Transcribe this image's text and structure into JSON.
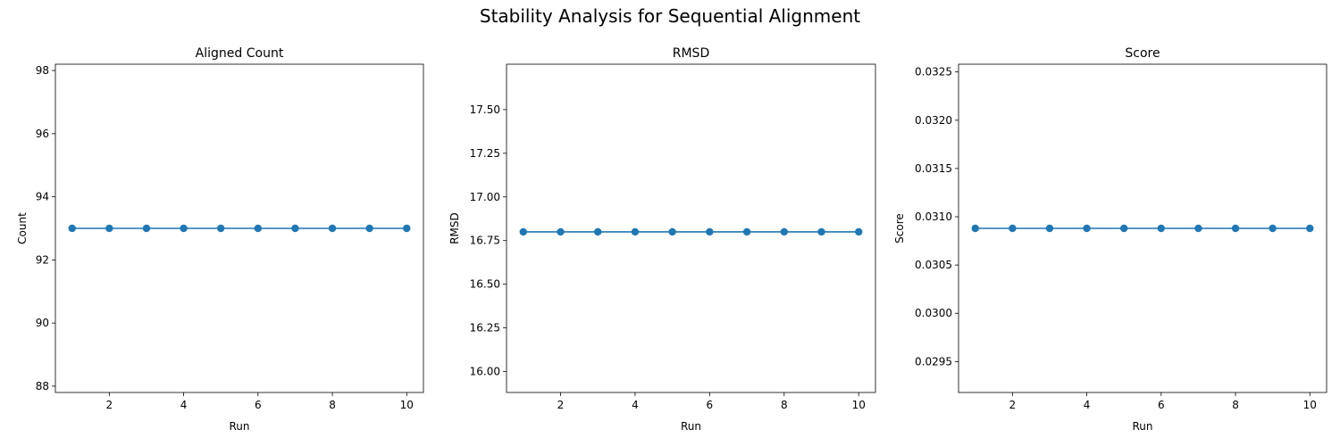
{
  "suptitle": "Stability Analysis for Sequential Alignment",
  "chart_data": [
    {
      "type": "line",
      "title": "Aligned Count",
      "xlabel": "Run",
      "ylabel": "Count",
      "x": [
        1,
        2,
        3,
        4,
        5,
        6,
        7,
        8,
        9,
        10
      ],
      "series": [
        {
          "values": [
            93,
            93,
            93,
            93,
            93,
            93,
            93,
            93,
            93,
            93
          ],
          "color": "#1f77b4"
        }
      ],
      "xlim": [
        0.55,
        10.45
      ],
      "ylim": [
        87.8,
        98.2
      ],
      "xticks": [
        2,
        4,
        6,
        8,
        10
      ],
      "yticks": [
        88,
        90,
        92,
        94,
        96,
        98
      ],
      "ytick_labels": [
        "88",
        "90",
        "92",
        "94",
        "96",
        "98"
      ],
      "grid": false
    },
    {
      "type": "line",
      "title": "RMSD",
      "xlabel": "Run",
      "ylabel": "RMSD",
      "x": [
        1,
        2,
        3,
        4,
        5,
        6,
        7,
        8,
        9,
        10
      ],
      "series": [
        {
          "values": [
            16.8,
            16.8,
            16.8,
            16.8,
            16.8,
            16.8,
            16.8,
            16.8,
            16.8,
            16.8
          ],
          "color": "#1f77b4"
        }
      ],
      "xlim": [
        0.55,
        10.45
      ],
      "ylim": [
        15.88,
        17.76
      ],
      "xticks": [
        2,
        4,
        6,
        8,
        10
      ],
      "yticks": [
        16.0,
        16.25,
        16.5,
        16.75,
        17.0,
        17.25,
        17.5
      ],
      "ytick_labels": [
        "16.00",
        "16.25",
        "16.50",
        "16.75",
        "17.00",
        "17.25",
        "17.50"
      ],
      "grid": false
    },
    {
      "type": "line",
      "title": "Score",
      "xlabel": "Run",
      "ylabel": "Score",
      "x": [
        1,
        2,
        3,
        4,
        5,
        6,
        7,
        8,
        9,
        10
      ],
      "series": [
        {
          "values": [
            0.03088,
            0.03088,
            0.03088,
            0.03088,
            0.03088,
            0.03088,
            0.03088,
            0.03088,
            0.03088,
            0.03088
          ],
          "color": "#1f77b4"
        }
      ],
      "xlim": [
        0.55,
        10.45
      ],
      "ylim": [
        0.02918,
        0.03258
      ],
      "xticks": [
        2,
        4,
        6,
        8,
        10
      ],
      "yticks": [
        0.0295,
        0.03,
        0.0305,
        0.031,
        0.0315,
        0.032,
        0.0325
      ],
      "ytick_labels": [
        "0.0295",
        "0.0300",
        "0.0305",
        "0.0310",
        "0.0315",
        "0.0320",
        "0.0325"
      ],
      "grid": false
    }
  ]
}
